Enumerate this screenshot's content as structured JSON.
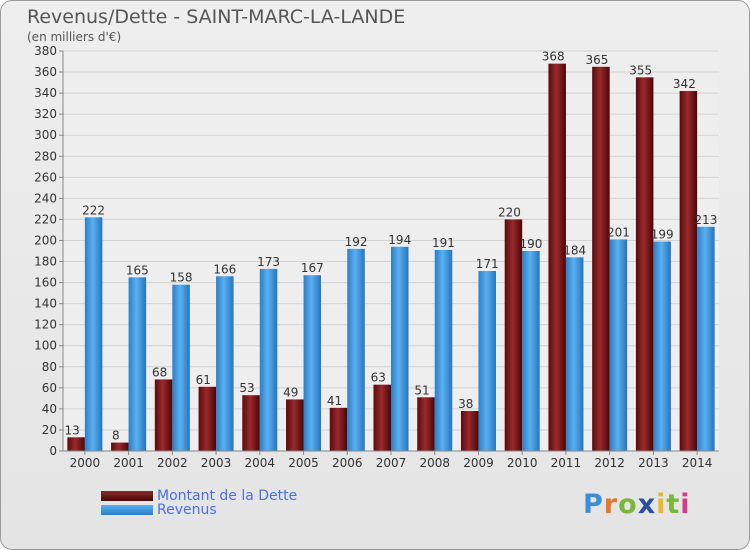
{
  "header": {
    "title": "Revenus/Dette - SAINT-MARC-LA-LANDE",
    "subtitle": "(en milliers d'€)"
  },
  "legend": {
    "items": [
      {
        "label": "Montant de la Dette",
        "color": "#6b1014"
      },
      {
        "label": "Revenus",
        "color": "#3d9be0"
      }
    ]
  },
  "logo": {
    "letters": [
      "P",
      "r",
      "o",
      "x",
      "i",
      "t",
      "i"
    ],
    "colors": [
      "#3a8fd8",
      "#e8762a",
      "#7ab83a",
      "#2a4fa8",
      "#e8b82a",
      "#7ab83a",
      "#d63a8a"
    ]
  },
  "chart_data": {
    "type": "bar",
    "title": "Revenus/Dette - SAINT-MARC-LA-LANDE",
    "subtitle": "(en milliers d'€)",
    "categories": [
      "2000",
      "2001",
      "2002",
      "2003",
      "2004",
      "2005",
      "2006",
      "2007",
      "2008",
      "2009",
      "2010",
      "2011",
      "2012",
      "2013",
      "2014"
    ],
    "series": [
      {
        "name": "Montant de la Dette",
        "color": "#7a1a1c",
        "values": [
          13,
          8,
          68,
          61,
          53,
          49,
          41,
          63,
          51,
          38,
          220,
          368,
          365,
          355,
          342
        ]
      },
      {
        "name": "Revenus",
        "color": "#3d9be0",
        "values": [
          222,
          165,
          158,
          166,
          173,
          167,
          192,
          194,
          191,
          171,
          190,
          184,
          201,
          199,
          213
        ]
      }
    ],
    "ylim": [
      0,
      380
    ],
    "yticks": [
      0,
      20,
      40,
      60,
      80,
      100,
      120,
      140,
      160,
      180,
      200,
      220,
      240,
      260,
      280,
      300,
      320,
      340,
      360,
      380
    ],
    "grid": true,
    "legend_position": "bottom-left"
  }
}
